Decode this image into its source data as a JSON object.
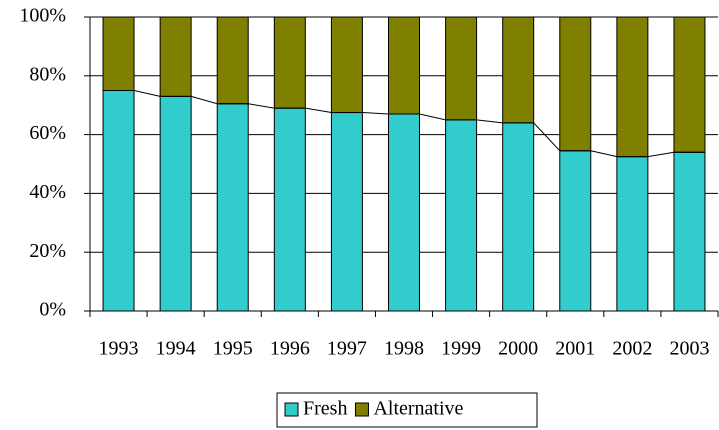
{
  "chart_data": {
    "type": "stacked_bar_100",
    "categories": [
      "1993",
      "1994",
      "1995",
      "1996",
      "1997",
      "1998",
      "1999",
      "2000",
      "2001",
      "2002",
      "2003"
    ],
    "series": [
      {
        "name": "Fresh",
        "color": "#33cccc",
        "values": [
          75,
          73,
          70.5,
          69,
          67.5,
          67,
          65,
          64,
          54.5,
          52.5,
          54
        ]
      },
      {
        "name": "Alternative",
        "color": "#808000",
        "values": [
          25,
          27,
          29.5,
          31,
          32.5,
          33,
          35,
          36,
          45.5,
          47.5,
          46
        ]
      }
    ],
    "ylim": [
      0,
      100
    ],
    "yticks": [
      {
        "value": 0,
        "label": "0%"
      },
      {
        "value": 20,
        "label": "20%"
      },
      {
        "value": 40,
        "label": "40%"
      },
      {
        "value": 60,
        "label": "60%"
      },
      {
        "value": 80,
        "label": "80%"
      },
      {
        "value": 100,
        "label": "100%"
      }
    ],
    "grid": true,
    "series_lines": true,
    "legend": "bottom"
  }
}
